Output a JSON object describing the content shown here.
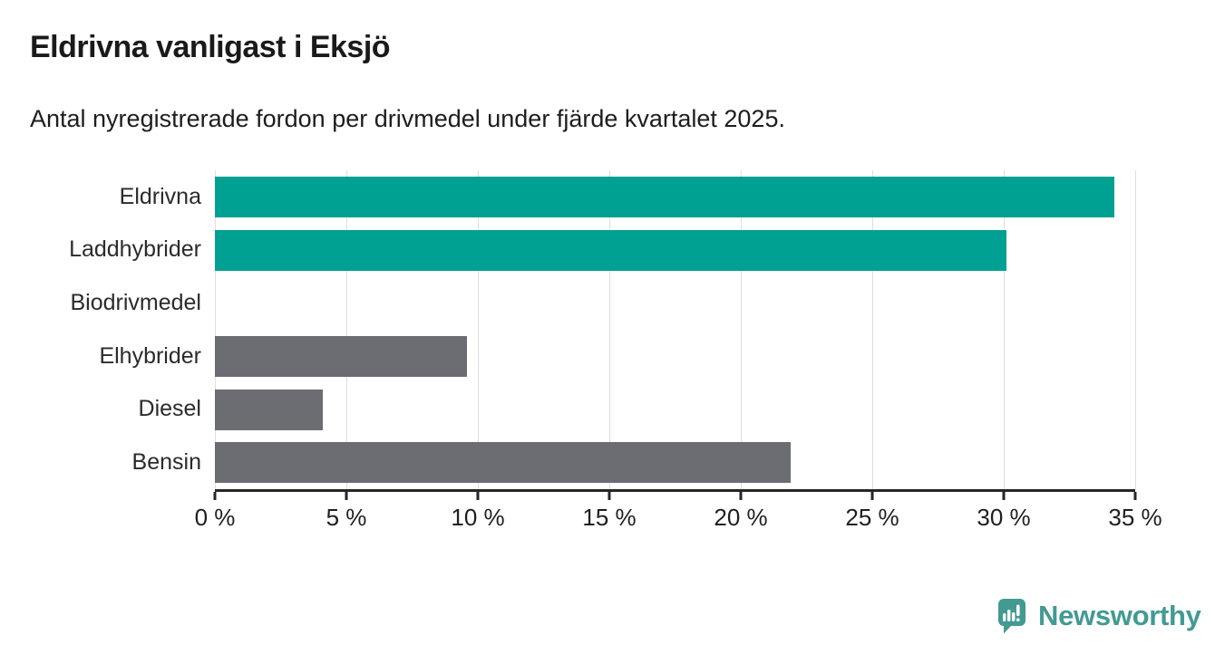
{
  "chart": {
    "title": "Eldrivna vanligast i Eksjö",
    "subtitle": "Antal nyregistrerade fordon per drivmedel under fjärde kvartalet 2025."
  },
  "chart_data": {
    "type": "bar",
    "orientation": "horizontal",
    "title": "Eldrivna vanligast i Eksjö",
    "subtitle": "Antal nyregistrerade fordon per drivmedel under fjärde kvartalet 2025.",
    "categories": [
      "Eldrivna",
      "Laddhybrider",
      "Biodrivmedel",
      "Elhybrider",
      "Diesel",
      "Bensin"
    ],
    "values": [
      34.2,
      30.1,
      0,
      9.6,
      4.1,
      21.9
    ],
    "unit": "%",
    "xlim": [
      0,
      35
    ],
    "x_ticks": [
      0,
      5,
      10,
      15,
      20,
      25,
      30,
      35
    ],
    "x_tick_labels": [
      "0 %",
      "5 %",
      "10 %",
      "15 %",
      "20 %",
      "25 %",
      "30 %",
      "35 %"
    ],
    "bar_colors": [
      "#00A093",
      "#00A093",
      "#6C6C73",
      "#6C6C73",
      "#6C6C73",
      "#6C6C73"
    ],
    "highlight_color": "#00A093",
    "base_color": "#6C6C73",
    "gridline_color": "#dedede",
    "grid": true,
    "legend": false
  },
  "footer": {
    "brand": "Newsworthy",
    "brand_color": "#429A93"
  }
}
